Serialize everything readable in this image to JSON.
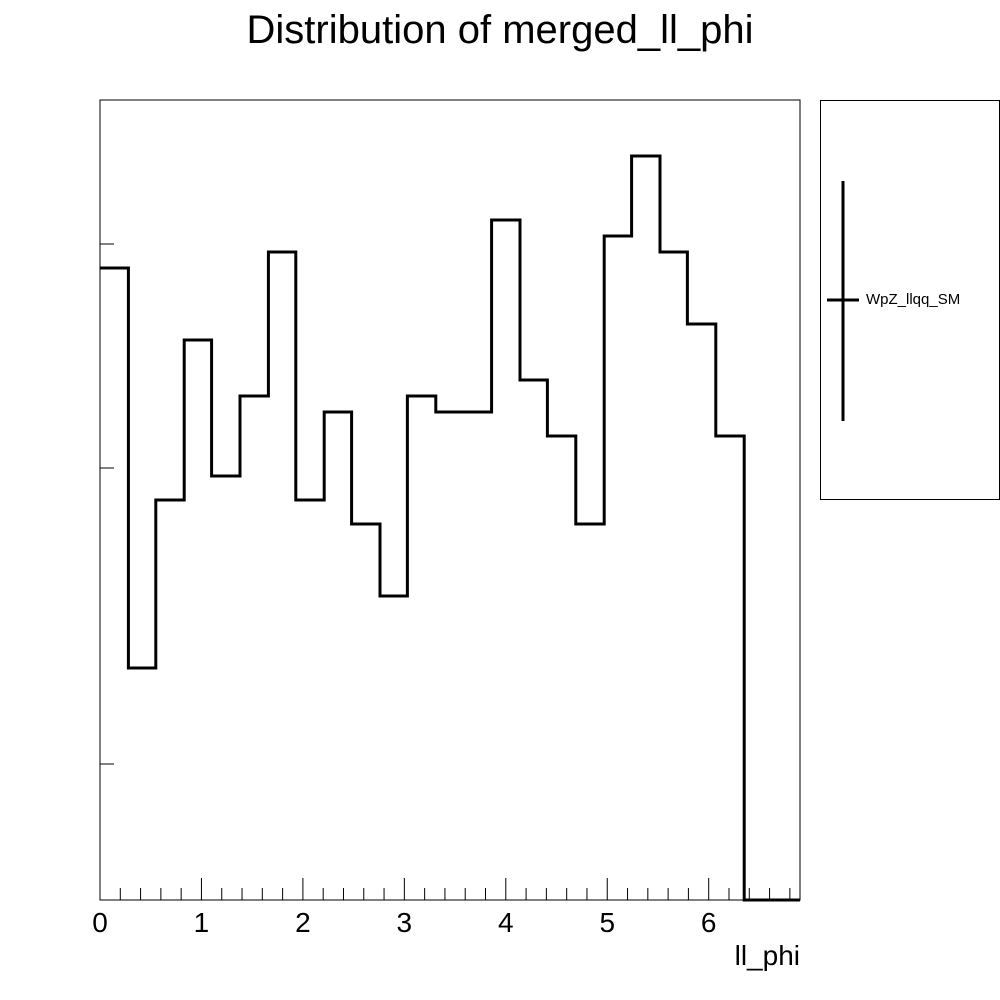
{
  "chart_data": {
    "type": "bar",
    "title": "Distribution of merged_ll_phi",
    "xlabel": "ll_phi",
    "ylabel": "",
    "xlim": [
      0,
      6.9
    ],
    "bin_edges": [
      0,
      0.28,
      0.55,
      0.83,
      1.1,
      1.38,
      1.66,
      1.93,
      2.21,
      2.48,
      2.76,
      3.03,
      3.31,
      3.59,
      3.86,
      4.14,
      4.41,
      4.69,
      4.97,
      5.24,
      5.52,
      5.79,
      6.07,
      6.35,
      6.9
    ],
    "values": [
      0.79,
      0.29,
      0.5,
      0.7,
      0.53,
      0.63,
      0.81,
      0.5,
      0.61,
      0.47,
      0.38,
      0.63,
      0.61,
      0.61,
      0.85,
      0.65,
      0.58,
      0.47,
      0.83,
      0.93,
      0.81,
      0.72,
      0.58,
      0.0
    ],
    "x_ticks": [
      0,
      1,
      2,
      3,
      4,
      5,
      6
    ],
    "y_ticks": [
      0.17,
      0.54,
      0.82
    ],
    "y_tick_labels_shown": false,
    "series": [
      {
        "name": "WpZ_llqq_SM",
        "color": "#000000"
      }
    ],
    "legend_position": "right-outside-top",
    "grid": false
  }
}
